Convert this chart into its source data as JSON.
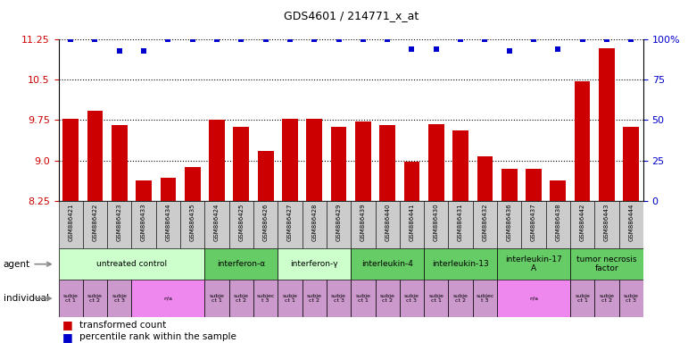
{
  "title": "GDS4601 / 214771_x_at",
  "samples": [
    "GSM886421",
    "GSM886422",
    "GSM886423",
    "GSM886433",
    "GSM886434",
    "GSM886435",
    "GSM886424",
    "GSM886425",
    "GSM886426",
    "GSM886427",
    "GSM886428",
    "GSM886429",
    "GSM886439",
    "GSM886440",
    "GSM886441",
    "GSM886430",
    "GSM886431",
    "GSM886432",
    "GSM886436",
    "GSM886437",
    "GSM886438",
    "GSM886442",
    "GSM886443",
    "GSM886444"
  ],
  "bar_values": [
    9.78,
    9.92,
    9.65,
    8.63,
    8.67,
    8.87,
    9.75,
    9.62,
    9.17,
    9.77,
    9.77,
    9.62,
    9.72,
    9.65,
    8.97,
    9.68,
    9.55,
    9.07,
    8.85,
    8.85,
    8.63,
    10.47,
    11.08,
    9.62
  ],
  "dot_values": [
    100,
    100,
    93,
    93,
    100,
    100,
    100,
    100,
    100,
    100,
    100,
    100,
    100,
    100,
    94,
    94,
    100,
    100,
    93,
    100,
    94,
    100,
    100,
    100
  ],
  "ylim_left": [
    8.25,
    11.25
  ],
  "yticks_left": [
    8.25,
    9.0,
    9.75,
    10.5,
    11.25
  ],
  "yticks_right": [
    0,
    25,
    50,
    75,
    100
  ],
  "bar_color": "#cc0000",
  "dot_color": "#0000cc",
  "agent_groups": [
    {
      "label": "untreated control",
      "start": 0,
      "end": 5,
      "color": "#ccffcc"
    },
    {
      "label": "interferon-α",
      "start": 6,
      "end": 8,
      "color": "#66cc66"
    },
    {
      "label": "interferon-γ",
      "start": 9,
      "end": 11,
      "color": "#ccffcc"
    },
    {
      "label": "interleukin-4",
      "start": 12,
      "end": 14,
      "color": "#66cc66"
    },
    {
      "label": "interleukin-13",
      "start": 15,
      "end": 17,
      "color": "#66cc66"
    },
    {
      "label": "interleukin-17\nA",
      "start": 18,
      "end": 20,
      "color": "#66cc66"
    },
    {
      "label": "tumor necrosis\nfactor",
      "start": 21,
      "end": 23,
      "color": "#66cc66"
    }
  ],
  "individual_groups": [
    {
      "label": "subje\nct 1",
      "start": 0,
      "end": 0,
      "color": "#cc99cc"
    },
    {
      "label": "subje\nct 2",
      "start": 1,
      "end": 1,
      "color": "#cc99cc"
    },
    {
      "label": "subje\nct 3",
      "start": 2,
      "end": 2,
      "color": "#cc99cc"
    },
    {
      "label": "n/a",
      "start": 3,
      "end": 5,
      "color": "#ee88ee"
    },
    {
      "label": "subje\nct 1",
      "start": 6,
      "end": 6,
      "color": "#cc99cc"
    },
    {
      "label": "subje\nct 2",
      "start": 7,
      "end": 7,
      "color": "#cc99cc"
    },
    {
      "label": "subjec\nt 3",
      "start": 8,
      "end": 8,
      "color": "#cc99cc"
    },
    {
      "label": "subje\nct 1",
      "start": 9,
      "end": 9,
      "color": "#cc99cc"
    },
    {
      "label": "subje\nct 2",
      "start": 10,
      "end": 10,
      "color": "#cc99cc"
    },
    {
      "label": "subje\nct 3",
      "start": 11,
      "end": 11,
      "color": "#cc99cc"
    },
    {
      "label": "subje\nct 1",
      "start": 12,
      "end": 12,
      "color": "#cc99cc"
    },
    {
      "label": "subje\nct 2",
      "start": 13,
      "end": 13,
      "color": "#cc99cc"
    },
    {
      "label": "subje\nct 3",
      "start": 14,
      "end": 14,
      "color": "#cc99cc"
    },
    {
      "label": "subje\nct 1",
      "start": 15,
      "end": 15,
      "color": "#cc99cc"
    },
    {
      "label": "subje\nct 2",
      "start": 16,
      "end": 16,
      "color": "#cc99cc"
    },
    {
      "label": "subjec\nt 3",
      "start": 17,
      "end": 17,
      "color": "#cc99cc"
    },
    {
      "label": "n/a",
      "start": 18,
      "end": 20,
      "color": "#ee88ee"
    },
    {
      "label": "subje\nct 1",
      "start": 21,
      "end": 21,
      "color": "#cc99cc"
    },
    {
      "label": "subje\nct 2",
      "start": 22,
      "end": 22,
      "color": "#cc99cc"
    },
    {
      "label": "subje\nct 3",
      "start": 23,
      "end": 23,
      "color": "#cc99cc"
    }
  ],
  "grid_color": "#555555",
  "bar_ytick_color": "#cc0000",
  "dot_ytick_color": "#0000cc"
}
